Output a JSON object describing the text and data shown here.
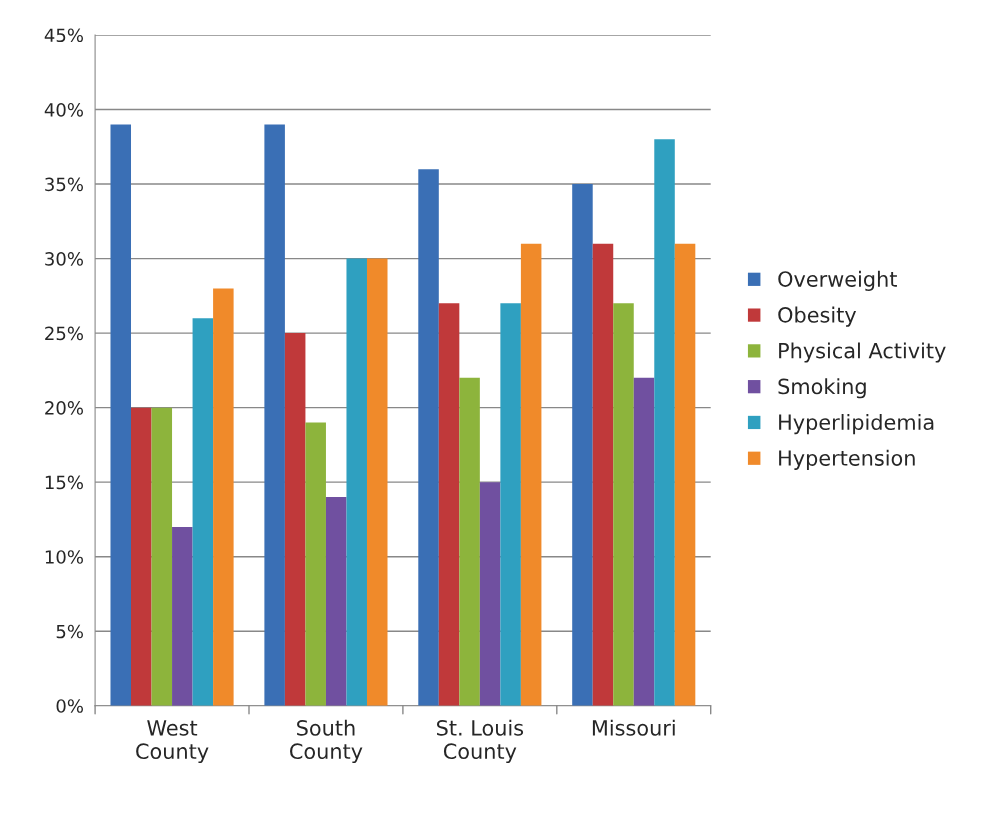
{
  "chart_data": {
    "type": "bar",
    "categories": [
      "West\nCounty",
      "South\nCounty",
      "St. Louis\nCounty",
      "Missouri"
    ],
    "series": [
      {
        "name": "Overweight",
        "color": "#3a6fb5",
        "values": [
          39,
          39,
          36,
          35
        ]
      },
      {
        "name": "Obesity",
        "color": "#c0393a",
        "values": [
          20,
          25,
          27,
          31
        ]
      },
      {
        "name": "Physical Activity",
        "color": "#8db43c",
        "values": [
          20,
          19,
          22,
          27
        ]
      },
      {
        "name": "Smoking",
        "color": "#7050a0",
        "values": [
          12,
          14,
          15,
          22
        ]
      },
      {
        "name": "Hyperlipidemia",
        "color": "#2fa0c0",
        "values": [
          26,
          30,
          27,
          38
        ]
      },
      {
        "name": "Hypertension",
        "color": "#f08a2a",
        "values": [
          28,
          30,
          31,
          31
        ]
      }
    ],
    "ylim": [
      0,
      45
    ],
    "yticks": [
      {
        "value": 0,
        "label": "0%"
      },
      {
        "value": 5,
        "label": "5%"
      },
      {
        "value": 10,
        "label": "10%"
      },
      {
        "value": 15,
        "label": "15%"
      },
      {
        "value": 20,
        "label": "20%"
      },
      {
        "value": 25,
        "label": "25%"
      },
      {
        "value": 30,
        "label": "30%"
      },
      {
        "value": 35,
        "label": "35%"
      },
      {
        "value": 40,
        "label": "40%"
      },
      {
        "value": 45,
        "label": "45%"
      }
    ],
    "grid": "y",
    "legend": "right"
  }
}
